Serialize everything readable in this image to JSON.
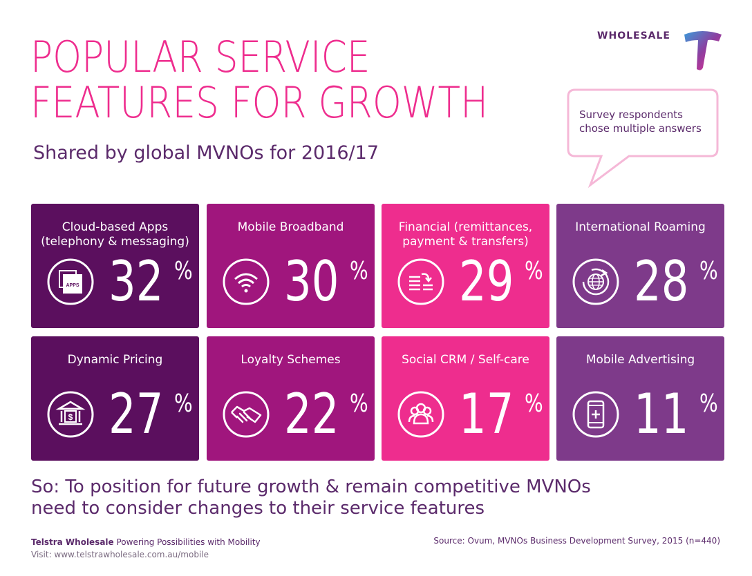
{
  "header": {
    "title_line1": "POPULAR SERVICE",
    "title_line2": "FEATURES FOR GROWTH",
    "subtitle": "Shared by global MVNOs for 2016/17",
    "brand": "WHOLESALE"
  },
  "note": {
    "line1": "Survey respondents",
    "line2": "chose multiple answers"
  },
  "features": [
    {
      "label_line1": "Cloud-based Apps",
      "label_line2": "(telephony & messaging)",
      "value": "32",
      "unit": "%",
      "icon": "apps-icon",
      "color": "#5b0f5e"
    },
    {
      "label_line1": "Mobile Broadband",
      "label_line2": "",
      "value": "30",
      "unit": "%",
      "icon": "wifi-icon",
      "color": "#a0167d"
    },
    {
      "label_line1": "Financial (remittances,",
      "label_line2": "payment & transfers)",
      "value": "29",
      "unit": "%",
      "icon": "transfer-icon",
      "color": "#ee2d8e"
    },
    {
      "label_line1": "International Roaming",
      "label_line2": "",
      "value": "28",
      "unit": "%",
      "icon": "globe-icon",
      "color": "#7e3a8a"
    },
    {
      "label_line1": "Dynamic Pricing",
      "label_line2": "",
      "value": "27",
      "unit": "%",
      "icon": "bank-icon",
      "color": "#5b0f5e"
    },
    {
      "label_line1": "Loyalty Schemes",
      "label_line2": "",
      "value": "22",
      "unit": "%",
      "icon": "handshake-icon",
      "color": "#a0167d"
    },
    {
      "label_line1": "Social CRM / Self-care",
      "label_line2": "",
      "value": "17",
      "unit": "%",
      "icon": "people-icon",
      "color": "#ee2d8e"
    },
    {
      "label_line1": "Mobile Advertising",
      "label_line2": "",
      "value": "11",
      "unit": "%",
      "icon": "phone-ad-icon",
      "color": "#7e3a8a"
    }
  ],
  "conclusion": {
    "line1": "So: To position for future growth & remain competitive MVNOs",
    "line2": "need to consider changes to their service features"
  },
  "footer": {
    "company": "Telstra Wholesale",
    "tagline": " Powering Possibilities with Mobility",
    "visit": "Visit: www.telstrawholesale.com.au/mobile",
    "source": "Source: Ovum, MVNOs Business Development Survey, 2015 (n=440)"
  }
}
